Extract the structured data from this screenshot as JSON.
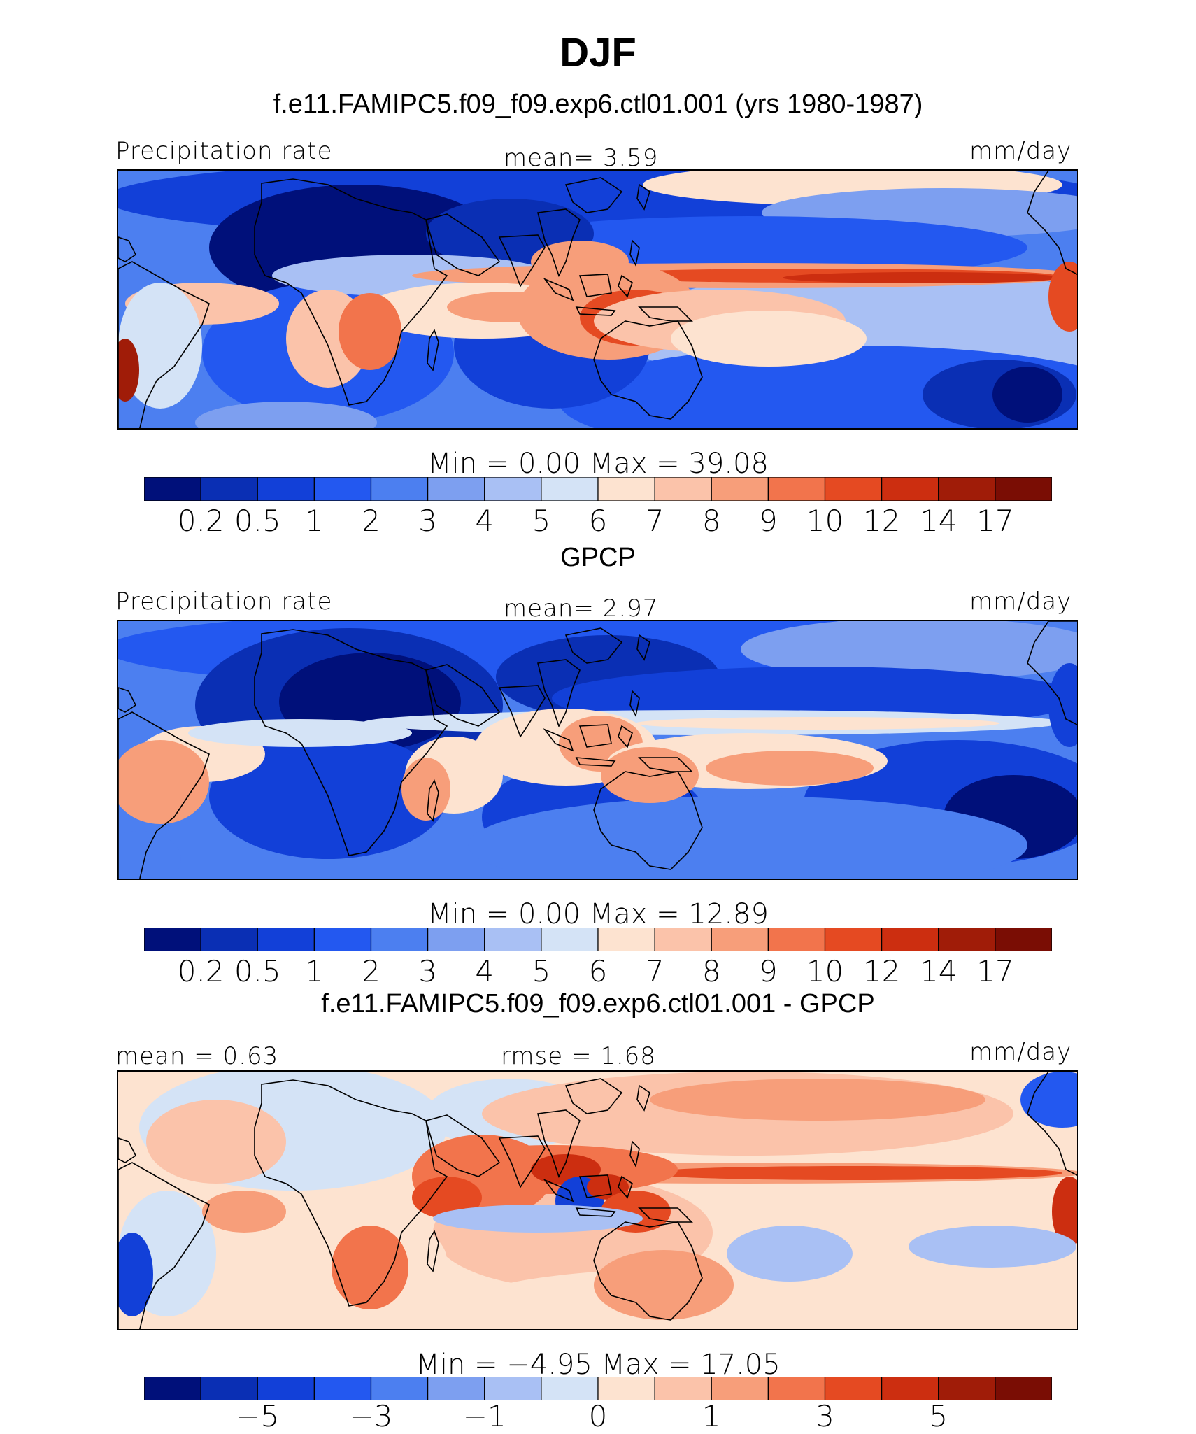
{
  "figure": {
    "title": "DJF"
  },
  "panels": [
    {
      "subtitle": "f.e11.FAMIPC5.f09_f09.exp6.ctl01.001 (yrs 1980-1987)",
      "left_label": "Precipitation rate",
      "center_label": "mean=    3.59",
      "right_label": "mm/day",
      "minmax": "Min  =     0.00  Max  =    39.08",
      "colorbar_ticks": [
        "0.2",
        "0.5",
        "1",
        "2",
        "3",
        "4",
        "5",
        "6",
        "7",
        "8",
        "9",
        "10",
        "12",
        "14",
        "17"
      ]
    },
    {
      "subtitle": "GPCP",
      "left_label": "Precipitation rate",
      "center_label": "mean=    2.97",
      "right_label": "mm/day",
      "minmax": "Min  =     0.00  Max  =    12.89",
      "colorbar_ticks": [
        "0.2",
        "0.5",
        "1",
        "2",
        "3",
        "4",
        "5",
        "6",
        "7",
        "8",
        "9",
        "10",
        "12",
        "14",
        "17"
      ]
    },
    {
      "subtitle": "f.e11.FAMIPC5.f09_f09.exp6.ctl01.001 - GPCP",
      "left_label": "mean  =    0.63",
      "center_label": "rmse  =    1.68",
      "right_label": "mm/day",
      "minmax": "Min  =   −4.95  Max  =    17.05",
      "colorbar_ticks": [
        "−5",
        "−3",
        "−1",
        "0",
        "1",
        "3",
        "5"
      ]
    }
  ],
  "chart_data": [
    {
      "type": "heatmap",
      "title": "f.e11.FAMIPC5.f09_f09.exp6.ctl01.001 (yrs 1980-1987)",
      "variable": "Precipitation rate",
      "units": "mm/day",
      "mean": 3.59,
      "min": 0.0,
      "max": 39.08,
      "levels": [
        0.2,
        0.5,
        1,
        2,
        3,
        4,
        5,
        6,
        7,
        8,
        9,
        10,
        12,
        14,
        17
      ],
      "colors": [
        "#00107a",
        "#0a2fb4",
        "#1240d8",
        "#2358f0",
        "#4c7ff0",
        "#7d9ff0",
        "#a9c0f4",
        "#d4e3f6",
        "#fde3d0",
        "#fbc3aa",
        "#f79e7a",
        "#f2744c",
        "#e54a22",
        "#cc2e10",
        "#a01c08",
        "#7a0d04"
      ]
    },
    {
      "type": "heatmap",
      "title": "GPCP",
      "variable": "Precipitation rate",
      "units": "mm/day",
      "mean": 2.97,
      "min": 0.0,
      "max": 12.89,
      "levels": [
        0.2,
        0.5,
        1,
        2,
        3,
        4,
        5,
        6,
        7,
        8,
        9,
        10,
        12,
        14,
        17
      ],
      "colors": [
        "#00107a",
        "#0a2fb4",
        "#1240d8",
        "#2358f0",
        "#4c7ff0",
        "#7d9ff0",
        "#a9c0f4",
        "#d4e3f6",
        "#fde3d0",
        "#fbc3aa",
        "#f79e7a",
        "#f2744c",
        "#e54a22",
        "#cc2e10",
        "#a01c08",
        "#7a0d04"
      ]
    },
    {
      "type": "heatmap",
      "title": "f.e11.FAMIPC5.f09_f09.exp6.ctl01.001 - GPCP",
      "units": "mm/day",
      "mean": 0.63,
      "rmse": 1.68,
      "min": -4.95,
      "max": 17.05,
      "levels": [
        -5,
        -3,
        -1,
        0,
        1,
        3,
        5
      ],
      "colors": [
        "#00107a",
        "#0a2fb4",
        "#1240d8",
        "#2358f0",
        "#4c7ff0",
        "#7d9ff0",
        "#a9c0f4",
        "#d4e3f6",
        "#fde3d0",
        "#fbc3aa",
        "#f79e7a",
        "#f2744c",
        "#e54a22",
        "#cc2e10",
        "#a01c08",
        "#7a0d04"
      ]
    }
  ]
}
